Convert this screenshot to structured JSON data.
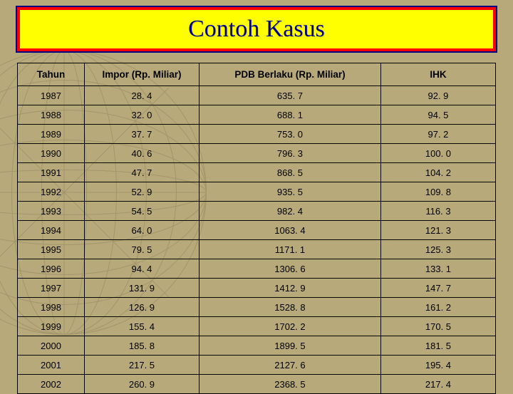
{
  "title": "Contoh Kasus",
  "table": {
    "type": "table",
    "background_color": "#b7a97a",
    "border_color": "#000000",
    "header_fontsize": 13.5,
    "cell_fontsize": 13,
    "columns": [
      "Tahun",
      "Impor (Rp. Miliar)",
      "PDB Berlaku (Rp. Miliar)",
      "IHK"
    ],
    "column_widths_pct": [
      14,
      24,
      38,
      24
    ],
    "rows": [
      [
        "1987",
        "28. 4",
        "635. 7",
        "92. 9"
      ],
      [
        "1988",
        "32. 0",
        "688. 1",
        "94. 5"
      ],
      [
        "1989",
        "37. 7",
        "753. 0",
        "97. 2"
      ],
      [
        "1990",
        "40. 6",
        "796. 3",
        "100. 0"
      ],
      [
        "1991",
        "47. 7",
        "868. 5",
        "104. 2"
      ],
      [
        "1992",
        "52. 9",
        "935. 5",
        "109. 8"
      ],
      [
        "1993",
        "54. 5",
        "982. 4",
        "116. 3"
      ],
      [
        "1994",
        "64. 0",
        "1063. 4",
        "121. 3"
      ],
      [
        "1995",
        "79. 5",
        "1171. 1",
        "125. 3"
      ],
      [
        "1996",
        "94. 4",
        "1306. 6",
        "133. 1"
      ],
      [
        "1997",
        "131. 9",
        "1412. 9",
        "147. 7"
      ],
      [
        "1998",
        "126. 9",
        "1528. 8",
        "161. 2"
      ],
      [
        "1999",
        "155. 4",
        "1702. 2",
        "170. 5"
      ],
      [
        "2000",
        "185. 8",
        "1899. 5",
        "181. 5"
      ],
      [
        "2001",
        "217. 5",
        "2127. 6",
        "195. 4"
      ],
      [
        "2002",
        "260. 9",
        "2368. 5",
        "217. 4"
      ]
    ]
  },
  "title_style": {
    "background_color": "#ffff00",
    "border_color": "#ff0000",
    "outline_color": "#000080",
    "text_color": "#000090",
    "font_family": "Times New Roman",
    "font_size": 34
  }
}
